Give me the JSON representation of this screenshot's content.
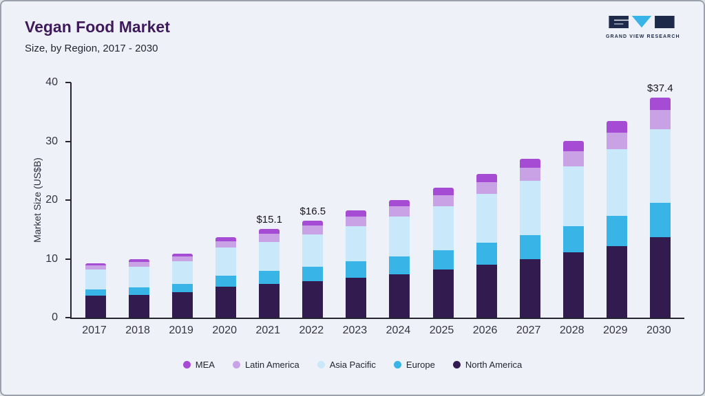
{
  "header": {
    "title": "Vegan Food Market",
    "subtitle": "Size, by Region, 2017 - 2030",
    "logo_text": "GRAND VIEW RESEARCH"
  },
  "colors": {
    "background": "#eef2f8",
    "border": "#9aa1ac",
    "title": "#3f1a5b",
    "axis": "#23242e",
    "logo_dark": "#1e2a4a",
    "logo_teal": "#39b4e6"
  },
  "chart_data": {
    "type": "bar",
    "stacked": true,
    "title": "Vegan Food Market Size, by Region, 2017 - 2030",
    "xlabel": "",
    "ylabel": "Market Size (US$B)",
    "ylim": [
      0,
      40
    ],
    "yticks": [
      0,
      10,
      20,
      30,
      40
    ],
    "grid": false,
    "legend_position": "bottom",
    "categories": [
      "2017",
      "2018",
      "2019",
      "2020",
      "2021",
      "2022",
      "2023",
      "2024",
      "2025",
      "2026",
      "2027",
      "2028",
      "2029",
      "2030"
    ],
    "series": [
      {
        "name": "North America",
        "color": "#321b4e",
        "values": [
          3.7,
          3.9,
          4.3,
          5.3,
          5.7,
          6.2,
          6.8,
          7.4,
          8.2,
          9.0,
          10.0,
          11.1,
          12.2,
          13.7
        ]
      },
      {
        "name": "Europe",
        "color": "#39b4e6",
        "values": [
          1.1,
          1.2,
          1.4,
          1.8,
          2.2,
          2.5,
          2.8,
          3.0,
          3.3,
          3.8,
          4.0,
          4.5,
          5.1,
          5.8
        ]
      },
      {
        "name": "Asia Pacific",
        "color": "#c9e9fa",
        "values": [
          3.4,
          3.6,
          3.9,
          4.8,
          5.0,
          5.5,
          6.0,
          6.8,
          7.4,
          8.2,
          9.3,
          10.1,
          11.4,
          12.6
        ]
      },
      {
        "name": "Latin America",
        "color": "#c9a2e6",
        "values": [
          0.7,
          0.8,
          0.8,
          1.1,
          1.4,
          1.5,
          1.6,
          1.7,
          1.9,
          2.1,
          2.2,
          2.6,
          2.8,
          3.2
        ]
      },
      {
        "name": "MEA",
        "color": "#a64bd4",
        "values": [
          0.4,
          0.5,
          0.5,
          0.7,
          0.8,
          0.8,
          1.0,
          1.1,
          1.3,
          1.4,
          1.5,
          1.8,
          2.0,
          2.1
        ]
      }
    ],
    "legend": [
      "MEA",
      "Latin America",
      "Asia Pacific",
      "Europe",
      "North America"
    ],
    "annotations": [
      {
        "category": "2021",
        "text": "$15.1"
      },
      {
        "category": "2022",
        "text": "$16.5"
      },
      {
        "category": "2030",
        "text": "$37.4"
      }
    ]
  }
}
